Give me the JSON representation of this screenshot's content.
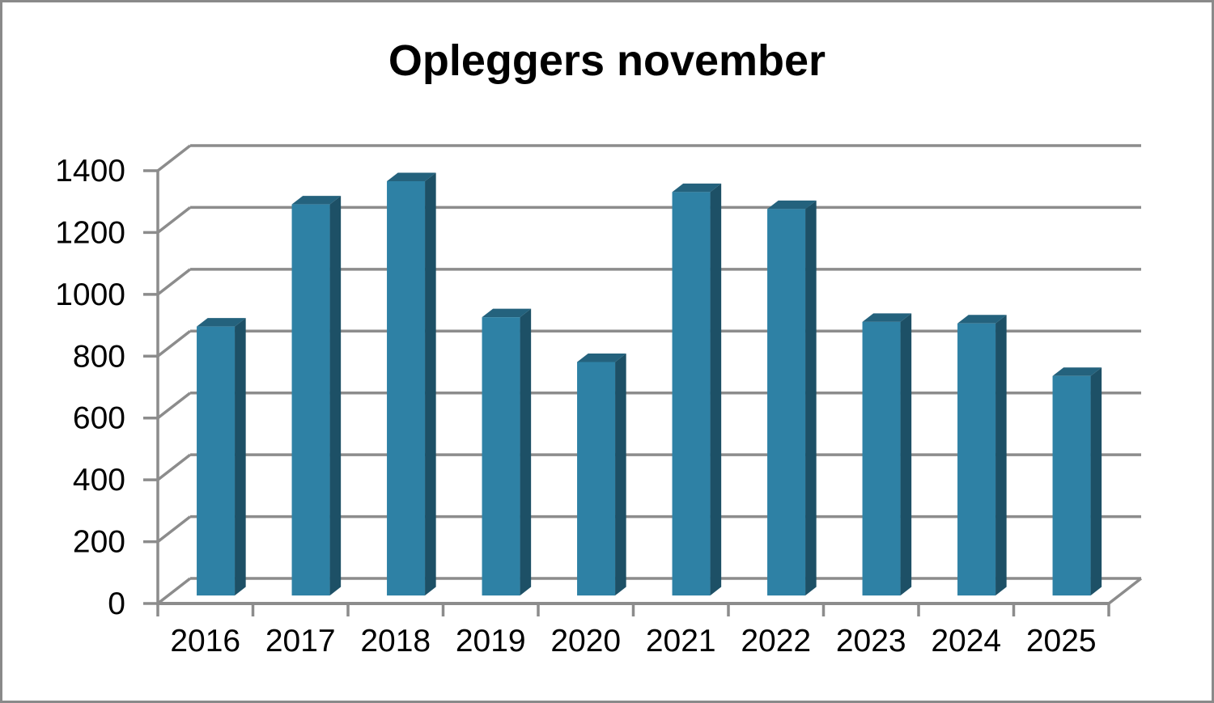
{
  "window": {
    "background": "#ffffff",
    "border_color": "#8a8a8a"
  },
  "chart_data": {
    "type": "bar",
    "projection": "3d-column",
    "title": "Opleggers november",
    "categories": [
      "2016",
      "2017",
      "2018",
      "2019",
      "2020",
      "2021",
      "2022",
      "2023",
      "2024",
      "2025"
    ],
    "values": [
      870,
      1265,
      1340,
      900,
      755,
      1305,
      1250,
      885,
      880,
      710
    ],
    "xlabel": "",
    "ylabel": "",
    "ylim": [
      0,
      1400
    ],
    "yticks": [
      0,
      200,
      400,
      600,
      800,
      1000,
      1200,
      1400
    ],
    "ytick_labels": [
      "0",
      "200",
      "400",
      "600",
      "800",
      "1000",
      "1200",
      "1400"
    ],
    "grid": true,
    "legend": false,
    "colors": {
      "bar_front": "#2E81A5",
      "bar_top": "#24627D",
      "bar_side": "#1D5066",
      "gridline": "#8C8C8C",
      "axis": "#8C8C8C",
      "text": "#000000"
    }
  }
}
